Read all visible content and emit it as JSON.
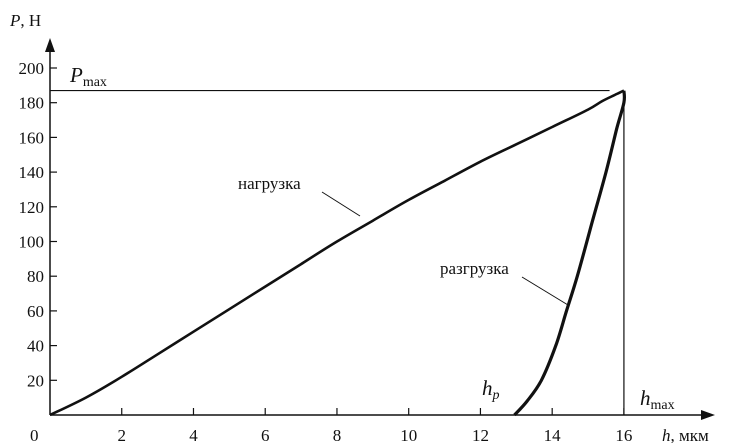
{
  "chart_data": {
    "type": "line",
    "title": "",
    "xlabel": {
      "symbol": "h",
      "unit": ", мкм"
    },
    "ylabel": {
      "symbol": "P",
      "unit": ", Н"
    },
    "xlim": [
      0,
      17
    ],
    "ylim": [
      0,
      200
    ],
    "origin_label": "0",
    "x_ticks": [
      2,
      4,
      6,
      8,
      10,
      12,
      14,
      16
    ],
    "y_ticks": [
      20,
      40,
      60,
      80,
      100,
      120,
      140,
      160,
      180,
      200
    ],
    "grid": false,
    "series": [
      {
        "name": "нагрузка",
        "points": [
          [
            0,
            0
          ],
          [
            1,
            10
          ],
          [
            2,
            22
          ],
          [
            3,
            35
          ],
          [
            4,
            48
          ],
          [
            5,
            61
          ],
          [
            6,
            74
          ],
          [
            7,
            87
          ],
          [
            8,
            100
          ],
          [
            9,
            112
          ],
          [
            10,
            124
          ],
          [
            11,
            135
          ],
          [
            12,
            146
          ],
          [
            13,
            156
          ],
          [
            14,
            166
          ],
          [
            15,
            176
          ],
          [
            15.4,
            181
          ],
          [
            15.8,
            185
          ],
          [
            16,
            187
          ]
        ]
      },
      {
        "name": "разгрузка",
        "points": [
          [
            16,
            187
          ],
          [
            16,
            180
          ],
          [
            15.8,
            165
          ],
          [
            15.5,
            140
          ],
          [
            15.1,
            110
          ],
          [
            14.7,
            80
          ],
          [
            14.4,
            60
          ],
          [
            14.1,
            40
          ],
          [
            13.7,
            20
          ],
          [
            13.3,
            8
          ],
          [
            12.95,
            0
          ]
        ]
      }
    ],
    "annotations": [
      {
        "symbol": "P",
        "sub": "max",
        "value": 187,
        "axis": "y"
      },
      {
        "symbol": "h",
        "sub": "max",
        "value": 16,
        "axis": "x"
      },
      {
        "symbol": "h",
        "sub": "p",
        "value": 12.95,
        "axis": "x"
      }
    ]
  }
}
